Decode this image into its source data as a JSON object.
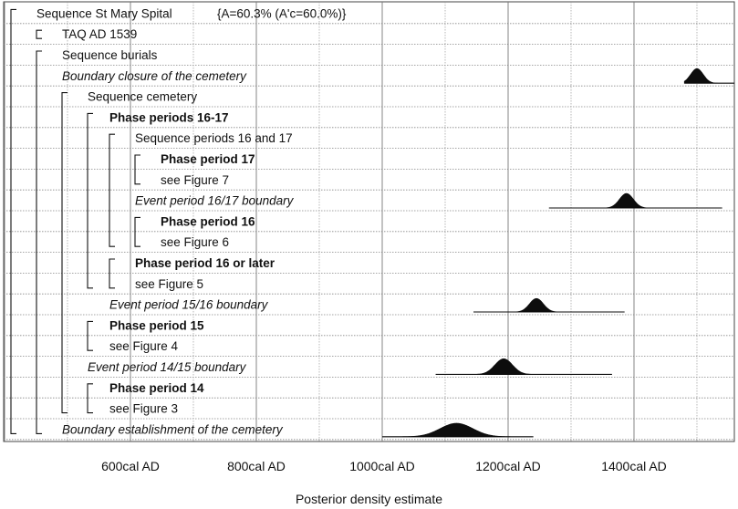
{
  "chart_data": {
    "type": "area",
    "subtitle": "{A=60.3%  (A'c=60.0%)}",
    "xlabel": "Posterior density estimate",
    "xlim": [
      400,
      1560
    ],
    "x_ticks": [
      600,
      800,
      1000,
      1200,
      1400
    ],
    "x_tick_labels": [
      "600cal AD",
      "800cal AD",
      "1000cal AD",
      "1200cal AD",
      "1400cal AD"
    ],
    "grid": true,
    "rows": [
      {
        "label": "Sequence St Mary Spital",
        "style": "normal",
        "indent": 0
      },
      {
        "label": "TAQ AD 1539",
        "style": "normal",
        "indent": 1
      },
      {
        "label": "Sequence burials",
        "style": "normal",
        "indent": 1
      },
      {
        "label": "Boundary closure of the cemetery",
        "style": "italic",
        "indent": 1,
        "range": [
          1480,
          1560
        ],
        "peak": 1500,
        "sd": 10,
        "height": 0.7
      },
      {
        "label": "Sequence cemetery",
        "style": "normal",
        "indent": 2
      },
      {
        "label": "Phase periods 16-17",
        "style": "bold",
        "indent": 3
      },
      {
        "label": "Sequence periods 16 and 17",
        "style": "normal",
        "indent": 4
      },
      {
        "label": "Phase period 17",
        "style": "bold",
        "indent": 5
      },
      {
        "label": "see Figure 7",
        "style": "normal",
        "indent": 5
      },
      {
        "label": "Event period 16/17 boundary",
        "style": "italic",
        "indent": 4,
        "range": [
          1265,
          1540
        ],
        "peak": 1388,
        "sd": 11,
        "height": 0.7
      },
      {
        "label": "Phase period 16",
        "style": "bold",
        "indent": 5
      },
      {
        "label": "see Figure 6",
        "style": "normal",
        "indent": 5
      },
      {
        "label": "Phase period 16 or later",
        "style": "bold",
        "indent": 4
      },
      {
        "label": "see Figure 5",
        "style": "normal",
        "indent": 4
      },
      {
        "label": "Event period 15/16 boundary",
        "style": "italic",
        "indent": 3,
        "range": [
          1145,
          1385
        ],
        "peak": 1245,
        "sd": 11,
        "height": 0.65
      },
      {
        "label": "Phase period 15",
        "style": "bold",
        "indent": 3
      },
      {
        "label": "see Figure 4",
        "style": "normal",
        "indent": 3
      },
      {
        "label": "Event period 14/15 boundary",
        "style": "italic",
        "indent": 2,
        "range": [
          1085,
          1365
        ],
        "peak": 1193,
        "sd": 14,
        "height": 0.75
      },
      {
        "label": "Phase period 14",
        "style": "bold",
        "indent": 3
      },
      {
        "label": "see Figure 3",
        "style": "normal",
        "indent": 3
      },
      {
        "label": "Boundary establishment of the cemetery",
        "style": "italic",
        "indent": 1,
        "range": [
          1000,
          1240
        ],
        "peak": 1118,
        "sd": 26,
        "height": 0.65
      }
    ],
    "brackets": [
      {
        "from": 0,
        "to": 20
      },
      {
        "from": 1,
        "to": 1
      },
      {
        "from": 2,
        "to": 20
      },
      {
        "from": 4,
        "to": 19
      },
      {
        "from": 5,
        "to": 13
      },
      {
        "from": 6,
        "to": 11
      },
      {
        "from": 7,
        "to": 8
      },
      {
        "from": 10,
        "to": 11
      },
      {
        "from": 12,
        "to": 13
      },
      {
        "from": 15,
        "to": 16
      },
      {
        "from": 18,
        "to": 19
      }
    ]
  }
}
